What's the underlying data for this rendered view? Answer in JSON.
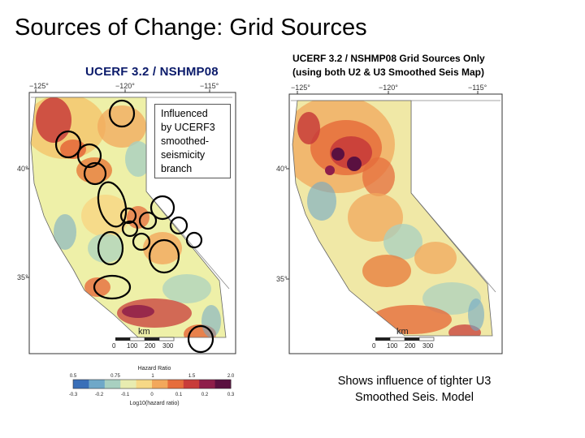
{
  "slide": {
    "title": "Sources of Change: Grid Sources"
  },
  "left_map": {
    "heading": "UCERF 3.2 / NSHMP08",
    "lon_labels": [
      "−125°",
      "−120°",
      "−115°"
    ],
    "lat_labels": [
      "40°",
      "35°"
    ],
    "scale_unit": "km",
    "scale_ticks": [
      "0",
      "100",
      "200",
      "300"
    ]
  },
  "right_map": {
    "caption_line1": "UCERF 3.2 / NSHMP08 Grid Sources Only",
    "caption_line2": "(using both U2 & U3 Smoothed Seis Map)",
    "lon_labels": [
      "−125°",
      "−120°",
      "−115°"
    ],
    "lat_labels": [
      "40°",
      "35°"
    ],
    "scale_unit": "km",
    "scale_ticks": [
      "0",
      "100",
      "200",
      "300"
    ]
  },
  "callout": {
    "lines": [
      "Influenced",
      "by UCERF3",
      "smoothed-",
      "seismicity",
      "branch"
    ]
  },
  "colorbar": {
    "title": "Hazard Ratio",
    "top_ticks": [
      "0.5",
      "0.75",
      "1",
      "1.5",
      "2.0"
    ],
    "bottom_ticks": [
      "-0.3",
      "-0.2",
      "-0.1",
      "0",
      "0.1",
      "0.2",
      "0.3"
    ],
    "label": "Log10(hazard ratio)",
    "colors": [
      "#3a6fb8",
      "#6fa8c8",
      "#a8d0c0",
      "#e8ecb0",
      "#f6d886",
      "#f2a85c",
      "#e66d3c",
      "#c83c3a",
      "#8e1e4a",
      "#5a1040"
    ]
  },
  "bottom_note": {
    "line1": "Shows influence of tighter U3",
    "line2": "Smoothed Seis. Model"
  }
}
